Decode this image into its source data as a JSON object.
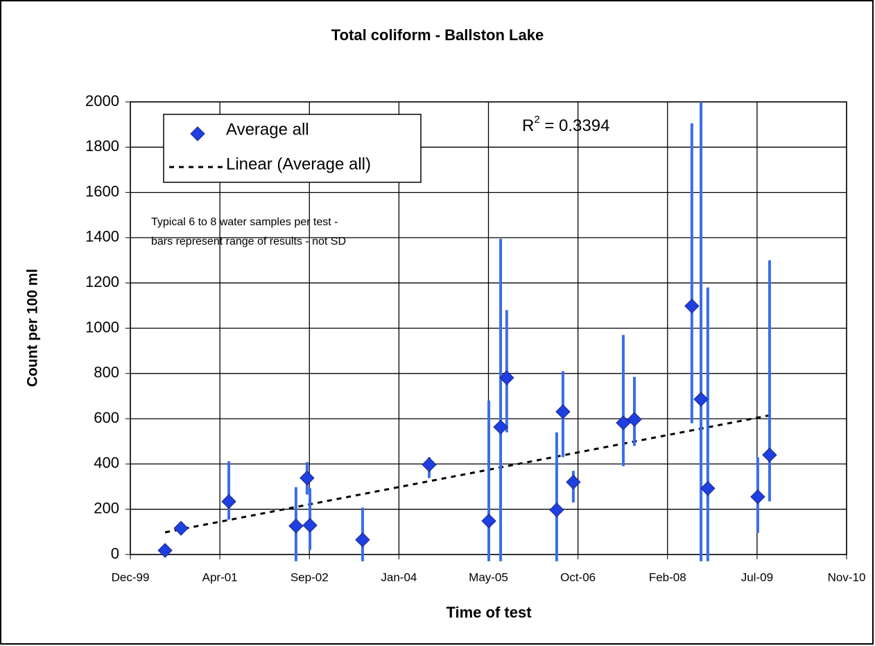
{
  "chart_data": {
    "type": "scatter",
    "title": "Total coliform - Ballston Lake",
    "x_label": "Time of test",
    "y_label": "Count per 100 ml",
    "xlim": [
      36500,
      40500
    ],
    "xticks": [
      {
        "value": 36500,
        "label": "Dec-99"
      },
      {
        "value": 37000,
        "label": "Apr-01"
      },
      {
        "value": 37500,
        "label": "Sep-02"
      },
      {
        "value": 38000,
        "label": "Jan-04"
      },
      {
        "value": 38500,
        "label": "May-05"
      },
      {
        "value": 39000,
        "label": "Oct-06"
      },
      {
        "value": 39500,
        "label": "Feb-08"
      },
      {
        "value": 40000,
        "label": "Jul-09"
      },
      {
        "value": 40500,
        "label": "Nov-10"
      }
    ],
    "ylim": [
      0,
      2000
    ],
    "yticks": [
      0,
      200,
      400,
      600,
      800,
      1000,
      1200,
      1400,
      1600,
      1800,
      2000
    ],
    "grid": true,
    "series": [
      {
        "name": "Average all",
        "color": "#1f3fe0",
        "bar_color": "#3a6ee8",
        "x": [
          36694,
          36783,
          37050,
          37425,
          37487,
          37503,
          37797,
          38169,
          38502,
          38568,
          38602,
          38881,
          38916,
          38974,
          39253,
          39315,
          39636,
          39687,
          39725,
          40004,
          40070
        ],
        "values": [
          18,
          116,
          234,
          126,
          338,
          129,
          65,
          397,
          148,
          563,
          781,
          197,
          631,
          320,
          582,
          597,
          1098,
          686,
          292,
          255,
          440
        ],
        "range_low": [
          null,
          null,
          154,
          -30,
          265,
          20,
          -30,
          338,
          -30,
          -30,
          540,
          -30,
          430,
          230,
          390,
          480,
          580,
          -30,
          -30,
          95,
          235
        ],
        "range_high": [
          null,
          null,
          412,
          298,
          408,
          293,
          207,
          430,
          680,
          1395,
          1080,
          540,
          810,
          370,
          970,
          785,
          1905,
          2000,
          1180,
          430,
          1300
        ]
      }
    ],
    "trendline": {
      "name": "Linear (Average all)",
      "color": "#000000",
      "x": [
        36694,
        40070
      ],
      "values": [
        98,
        615
      ]
    },
    "r_squared": {
      "symbol": "R",
      "superscript": "2",
      "text": " = 0.3394"
    },
    "note": [
      "Typical 6 to 8 water samples per test -",
      "bars represent range of results - not SD"
    ]
  }
}
